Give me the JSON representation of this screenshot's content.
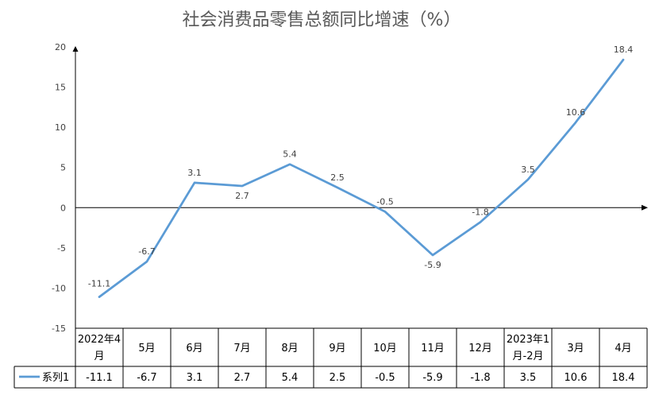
{
  "chart_data": {
    "type": "line",
    "title": "社会消费品零售总额同比增速（%）",
    "categories": [
      [
        "2022年4",
        "月"
      ],
      [
        "5月"
      ],
      [
        "6月"
      ],
      [
        "7月"
      ],
      [
        "8月"
      ],
      [
        "9月"
      ],
      [
        "10月"
      ],
      [
        "11月"
      ],
      [
        "12月"
      ],
      [
        "2023年1",
        "月-2月"
      ],
      [
        "3月"
      ],
      [
        "4月"
      ]
    ],
    "series": [
      {
        "name": "系列1",
        "values": [
          -11.1,
          -6.7,
          3.1,
          2.7,
          5.4,
          2.5,
          -0.5,
          -5.9,
          -1.8,
          3.5,
          10.6,
          18.4
        ],
        "value_labels": [
          "-11.1",
          "-6.7",
          "3.1",
          "2.7",
          "5.4",
          "2.5",
          "-0.5",
          "-5.9",
          "-1.8",
          "3.5",
          "10.6",
          "18.4"
        ]
      }
    ],
    "ylim": [
      -15,
      20
    ],
    "yticks": [
      -15,
      -10,
      -5,
      0,
      5,
      10,
      15,
      20
    ],
    "grid": false,
    "data_table": true,
    "colors": {
      "series": "#5b9bd5",
      "axis": "#000000",
      "table": "#000000",
      "title": "#595959"
    }
  }
}
